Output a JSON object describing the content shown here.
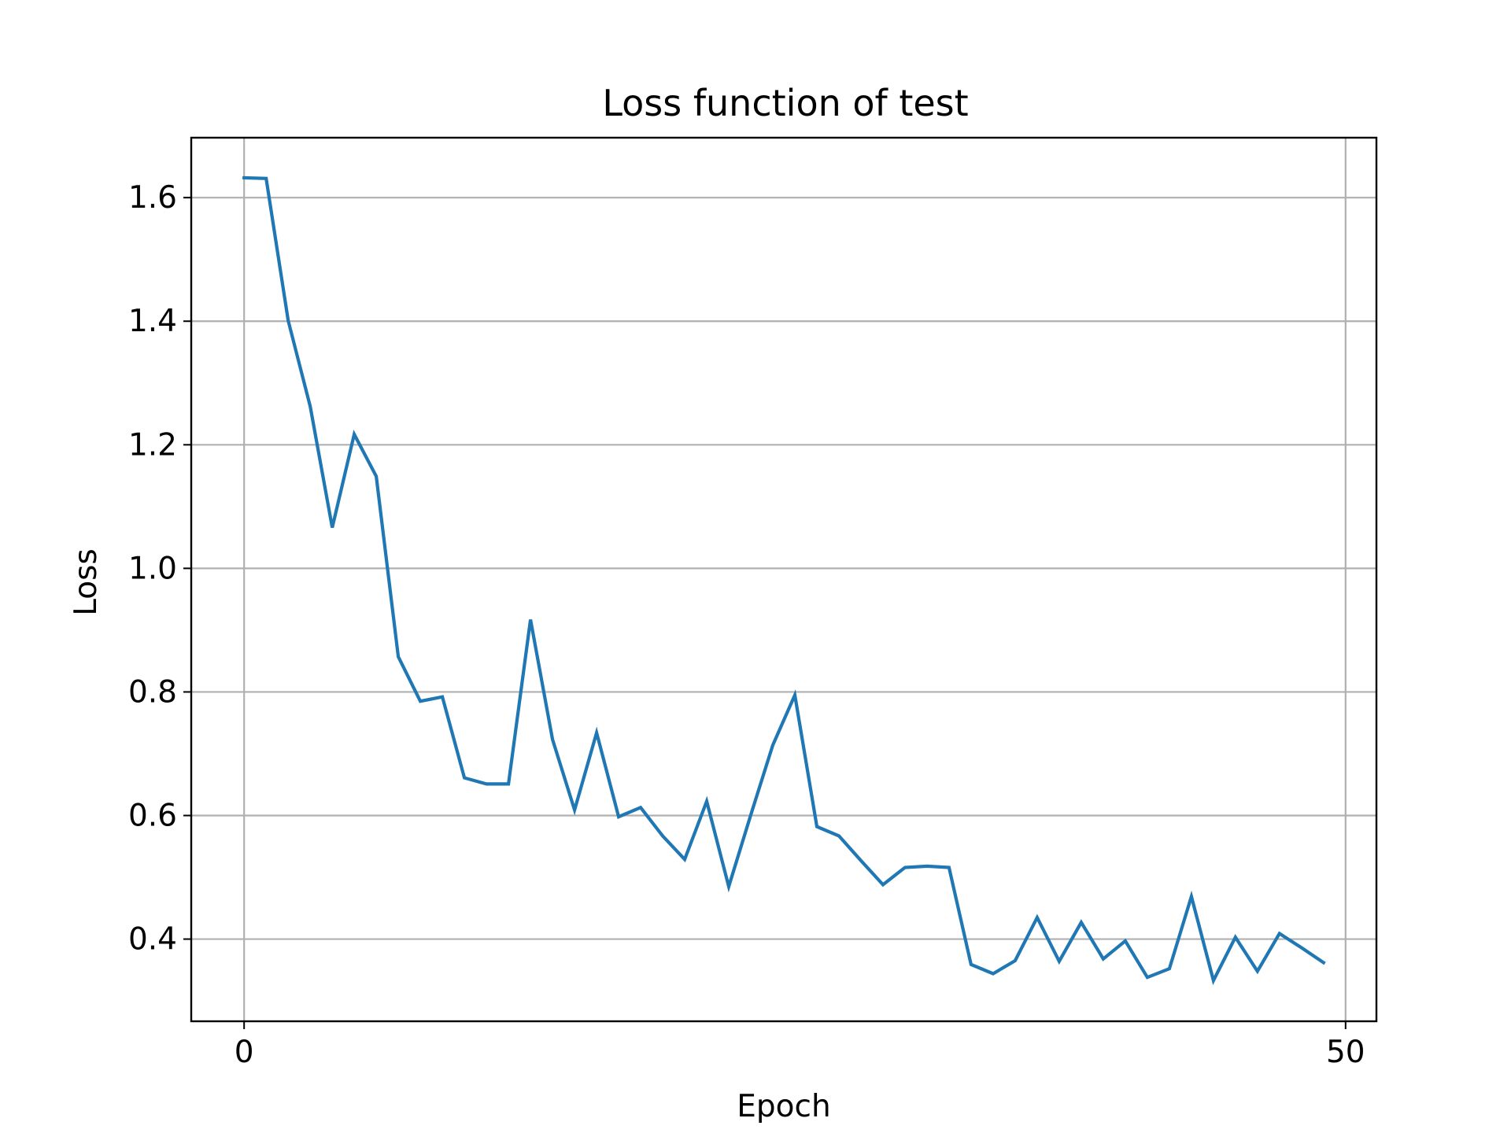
{
  "chart_data": {
    "type": "line",
    "title": "Loss function of test",
    "xlabel": "Epoch",
    "ylabel": "Loss",
    "xlim": [
      -2.4,
      51.4
    ],
    "ylim": [
      0.267,
      1.697
    ],
    "grid": true,
    "legend": false,
    "series_color": "#1f77b4",
    "xticks": [
      0,
      50
    ],
    "xtick_labels": [
      "0",
      "50"
    ],
    "yticks": [
      0.4,
      0.6,
      0.8,
      1.0,
      1.2,
      1.4,
      1.6
    ],
    "ytick_labels": [
      "0.4",
      "0.6",
      "0.8",
      "1.0",
      "1.2",
      "1.4",
      "1.6"
    ],
    "series": [
      {
        "x": [
          0,
          1,
          2,
          3,
          4,
          5,
          6,
          7,
          8,
          9,
          10,
          11,
          12,
          13,
          14,
          15,
          16,
          17,
          18,
          19,
          20,
          21,
          22,
          23,
          24,
          25,
          26,
          27,
          28,
          29,
          30,
          31,
          32,
          33,
          34,
          35,
          36,
          37,
          38,
          39,
          40,
          41,
          42,
          43,
          44,
          45,
          46,
          47,
          48,
          49
        ],
        "values": [
          1.632,
          1.631,
          1.401,
          1.262,
          1.066,
          1.217,
          1.149,
          0.857,
          0.785,
          0.792,
          0.661,
          0.651,
          0.651,
          0.917,
          0.723,
          0.609,
          0.734,
          0.598,
          0.613,
          0.567,
          0.529,
          0.623,
          0.485,
          0.601,
          0.714,
          0.795,
          0.582,
          0.567,
          0.527,
          0.488,
          0.516,
          0.518,
          0.516,
          0.359,
          0.344,
          0.365,
          0.435,
          0.364,
          0.427,
          0.368,
          0.397,
          0.338,
          0.352,
          0.469,
          0.333,
          0.403,
          0.348,
          0.409,
          0.386,
          0.362
        ]
      }
    ]
  }
}
